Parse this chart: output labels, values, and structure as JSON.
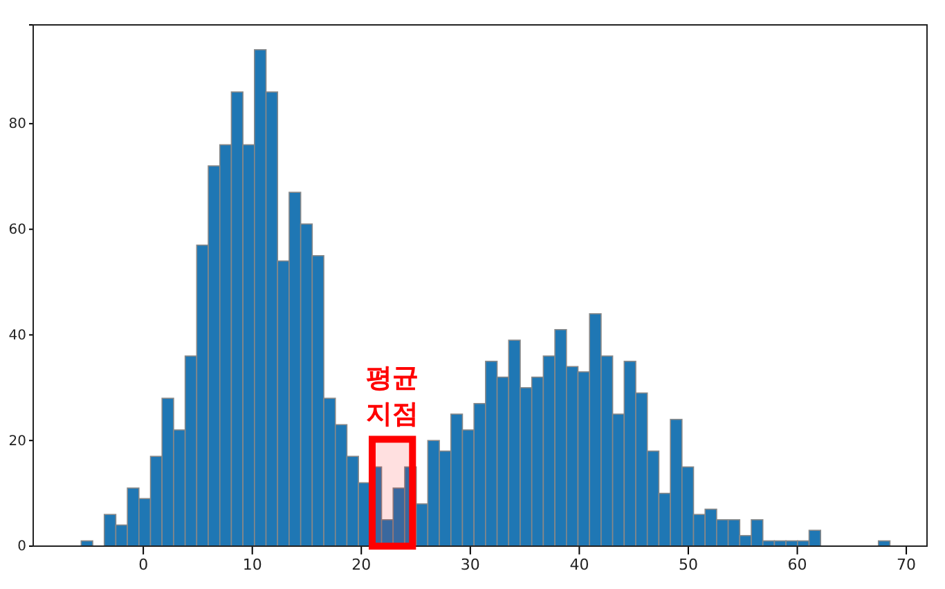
{
  "chart_data": {
    "type": "histogram",
    "bins": [
      -5.7,
      -4.64,
      -3.58,
      -2.52,
      -1.46,
      -0.4,
      0.66,
      1.72,
      2.78,
      3.84,
      4.9,
      5.96,
      7.02,
      8.08,
      9.14,
      10.2,
      11.26,
      12.32,
      13.38,
      14.44,
      15.5,
      16.56,
      17.62,
      18.68,
      19.74,
      20.8,
      21.86,
      22.92,
      23.98,
      25.04,
      26.1,
      27.16,
      28.22,
      29.28,
      30.34,
      31.4,
      32.46,
      33.52,
      34.58,
      35.64,
      36.7,
      37.76,
      38.82,
      39.88,
      40.94,
      42,
      43.06,
      44.12,
      45.18,
      46.24,
      47.3,
      48.36,
      49.42,
      50.48,
      51.54,
      52.6,
      53.66,
      54.72,
      55.78,
      56.84,
      57.9,
      58.96,
      60.02,
      61.08,
      62.14,
      63.2,
      64.26,
      65.32,
      66.38,
      67.44,
      68.5
    ],
    "values": [
      1,
      0,
      6,
      4,
      11,
      9,
      17,
      28,
      22,
      36,
      57,
      72,
      76,
      86,
      76,
      94,
      86,
      54,
      67,
      61,
      55,
      28,
      23,
      17,
      12,
      15,
      5,
      11,
      15,
      8,
      20,
      18,
      25,
      22,
      27,
      35,
      32,
      39,
      30,
      32,
      36,
      41,
      34,
      33,
      44,
      36,
      25,
      35,
      29,
      18,
      10,
      24,
      15,
      6,
      7,
      5,
      5,
      2,
      5,
      1,
      1,
      1,
      1,
      3,
      0,
      0,
      0,
      0,
      0,
      1
    ],
    "color": "#1f77b4",
    "xlim": [
      -10.1,
      71.9
    ],
    "xticks": [
      0,
      10,
      20,
      30,
      40,
      50,
      60,
      70
    ],
    "ylim": [
      0,
      98.7
    ],
    "yticks": [
      0,
      20,
      40,
      60,
      80
    ],
    "grid": false,
    "bands": [
      {
        "axis": "x",
        "from": 21,
        "to": 24.7,
        "label": "평균\n지점",
        "color": "#ff0000"
      }
    ]
  }
}
